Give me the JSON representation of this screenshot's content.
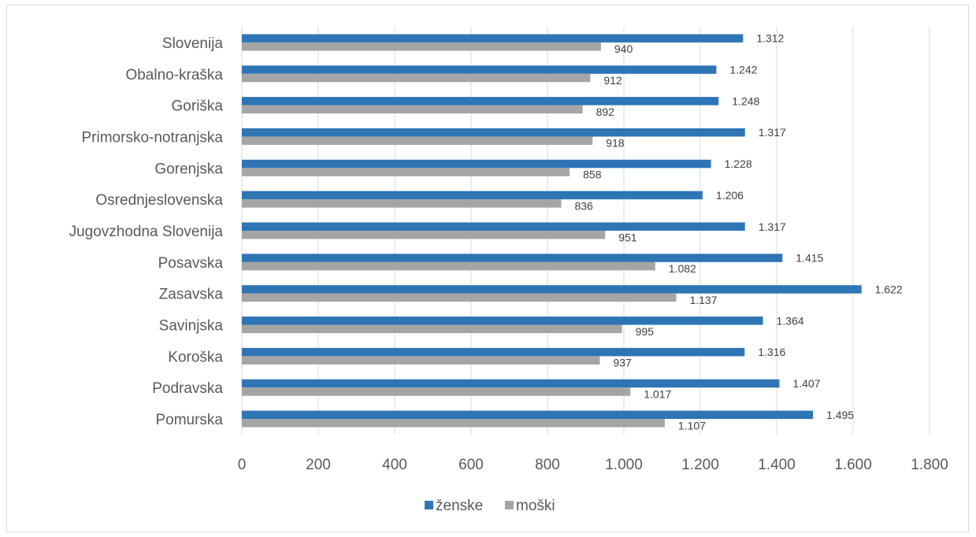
{
  "chart_data": {
    "type": "bar",
    "orientation": "horizontal",
    "categories": [
      "Slovenija",
      "Obalno-kraška",
      "Goriška",
      "Primorsko-notranjska",
      "Gorenjska",
      "Osrednjeslovenska",
      "Jugovzhodna Slovenija",
      "Posavska",
      "Zasavska",
      "Savinjska",
      "Koroška",
      "Podravska",
      "Pomurska"
    ],
    "series": [
      {
        "name": "ženske",
        "color": "#2e75b6",
        "values": [
          1312,
          1242,
          1248,
          1317,
          1228,
          1206,
          1317,
          1415,
          1622,
          1364,
          1316,
          1407,
          1495
        ],
        "labels": [
          "1.312",
          "1.242",
          "1.248",
          "1.317",
          "1.228",
          "1.206",
          "1.317",
          "1.415",
          "1.622",
          "1.364",
          "1.316",
          "1.407",
          "1.495"
        ]
      },
      {
        "name": "moški",
        "color": "#a5a5a5",
        "values": [
          940,
          912,
          892,
          918,
          858,
          836,
          951,
          1082,
          1137,
          995,
          937,
          1017,
          1107
        ],
        "labels": [
          "940",
          "912",
          "892",
          "918",
          "858",
          "836",
          "951",
          "1.082",
          "1.137",
          "995",
          "937",
          "1.017",
          "1.107"
        ]
      }
    ],
    "xlim": [
      0,
      1800
    ],
    "xticks": [
      0,
      200,
      400,
      600,
      800,
      1000,
      1200,
      1400,
      1600,
      1800
    ],
    "xtick_labels": [
      "0",
      "200",
      "400",
      "600",
      "800",
      "1.000",
      "1.200",
      "1.400",
      "1.600",
      "1.800"
    ],
    "grid": true,
    "legend": "bottom-center"
  }
}
